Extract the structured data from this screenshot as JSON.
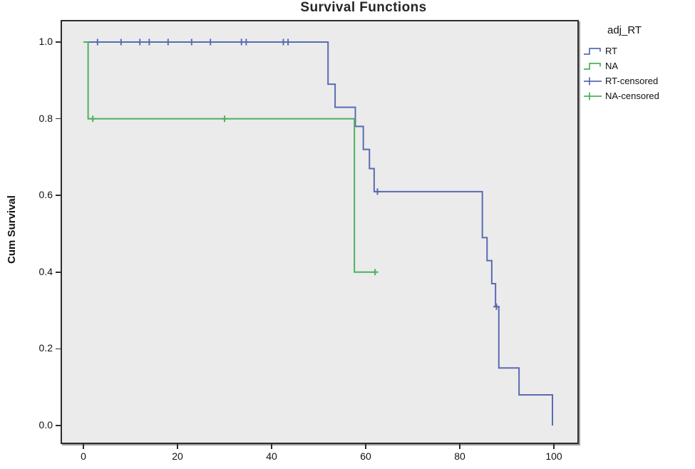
{
  "figure": {
    "title": "Survival Functions",
    "y_axis_label": "Cum Survival",
    "plot_background": "#EBEBEB",
    "frame_color": "#2D2D2D"
  },
  "legend": {
    "title": "adj_RT",
    "items": [
      {
        "label": "RT",
        "symbol": "step-line",
        "color": "#5A6BB2"
      },
      {
        "label": "NA",
        "symbol": "step-line",
        "color": "#4CB15F"
      },
      {
        "label": "RT-censored",
        "symbol": "censor-plus",
        "color": "#5A6BB2"
      },
      {
        "label": "NA-censored",
        "symbol": "censor-plus",
        "color": "#4CB15F"
      }
    ]
  },
  "chart_data": {
    "type": "line",
    "subtype": "kaplan-meier-step",
    "title": "Survival Functions",
    "xlabel": "",
    "ylabel": "Cum Survival",
    "xlim": [
      0,
      100
    ],
    "ylim": [
      0.0,
      1.0
    ],
    "x_ticks": [
      0,
      20,
      40,
      60,
      80,
      100
    ],
    "y_ticks": [
      "0.0",
      "0.2",
      "0.4",
      "0.6",
      "0.8",
      "1.0"
    ],
    "grid": false,
    "legend_position": "right",
    "legend_title": "adj_RT",
    "series": [
      {
        "name": "RT",
        "color": "#5A6BB2",
        "steps": [
          [
            0,
            1.0
          ],
          [
            52,
            0.89
          ],
          [
            53.5,
            0.83
          ],
          [
            57.8,
            0.78
          ],
          [
            59.5,
            0.72
          ],
          [
            60.8,
            0.67
          ],
          [
            61.8,
            0.61
          ],
          [
            84.8,
            0.49
          ],
          [
            85.8,
            0.43
          ],
          [
            86.8,
            0.37
          ],
          [
            87.6,
            0.31
          ],
          [
            88.3,
            0.15
          ],
          [
            92.6,
            0.08
          ],
          [
            99.7,
            0.0
          ]
        ],
        "end_t": 99.7,
        "censored": [
          [
            3,
            1.0
          ],
          [
            8,
            1.0
          ],
          [
            12,
            1.0
          ],
          [
            14,
            1.0
          ],
          [
            18,
            1.0
          ],
          [
            23,
            1.0
          ],
          [
            27,
            1.0
          ],
          [
            33.6,
            1.0
          ],
          [
            34.6,
            1.0
          ],
          [
            42.5,
            1.0
          ],
          [
            43.5,
            1.0
          ],
          [
            62.5,
            0.61
          ],
          [
            87.8,
            0.31
          ]
        ]
      },
      {
        "name": "NA",
        "color": "#4CB15F",
        "steps": [
          [
            0,
            1.0
          ],
          [
            1,
            0.8
          ],
          [
            57.6,
            0.4
          ]
        ],
        "end_t": 62,
        "censored": [
          [
            2,
            0.8
          ],
          [
            30,
            0.8
          ],
          [
            62,
            0.4
          ]
        ]
      }
    ]
  }
}
